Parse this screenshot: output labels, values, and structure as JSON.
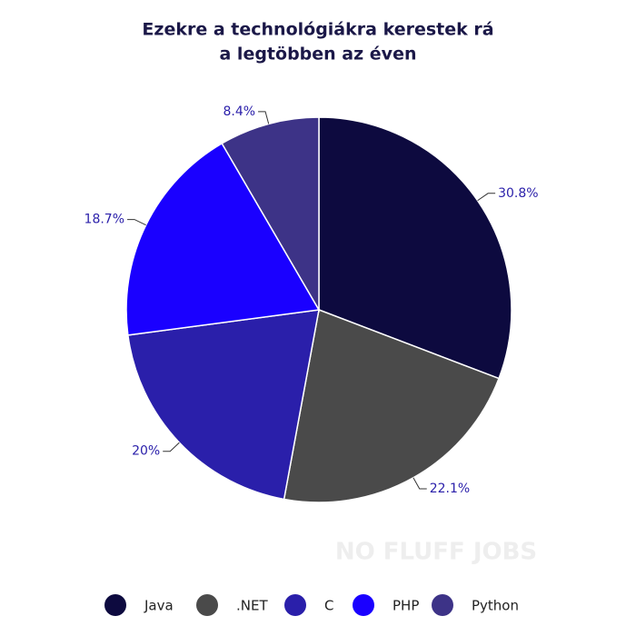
{
  "chart_data": {
    "type": "pie",
    "title": [
      "Ezekre a technológiákra kerestek rá",
      "a legtöbben az éven"
    ],
    "categories": [
      "Java",
      ".NET",
      "C",
      "PHP",
      "Python"
    ],
    "values": [
      30.8,
      22.1,
      20,
      18.7,
      8.4
    ],
    "value_labels": [
      "30.8%",
      "22.1%",
      "20%",
      "18.7%",
      "8.4%"
    ],
    "colors": [
      "#0d0a3f",
      "#4a4a4a",
      "#2a1faa",
      "#1a00ff",
      "#3d3387"
    ],
    "legend": "bottom",
    "watermark": "NO FLUFF JOBS"
  }
}
